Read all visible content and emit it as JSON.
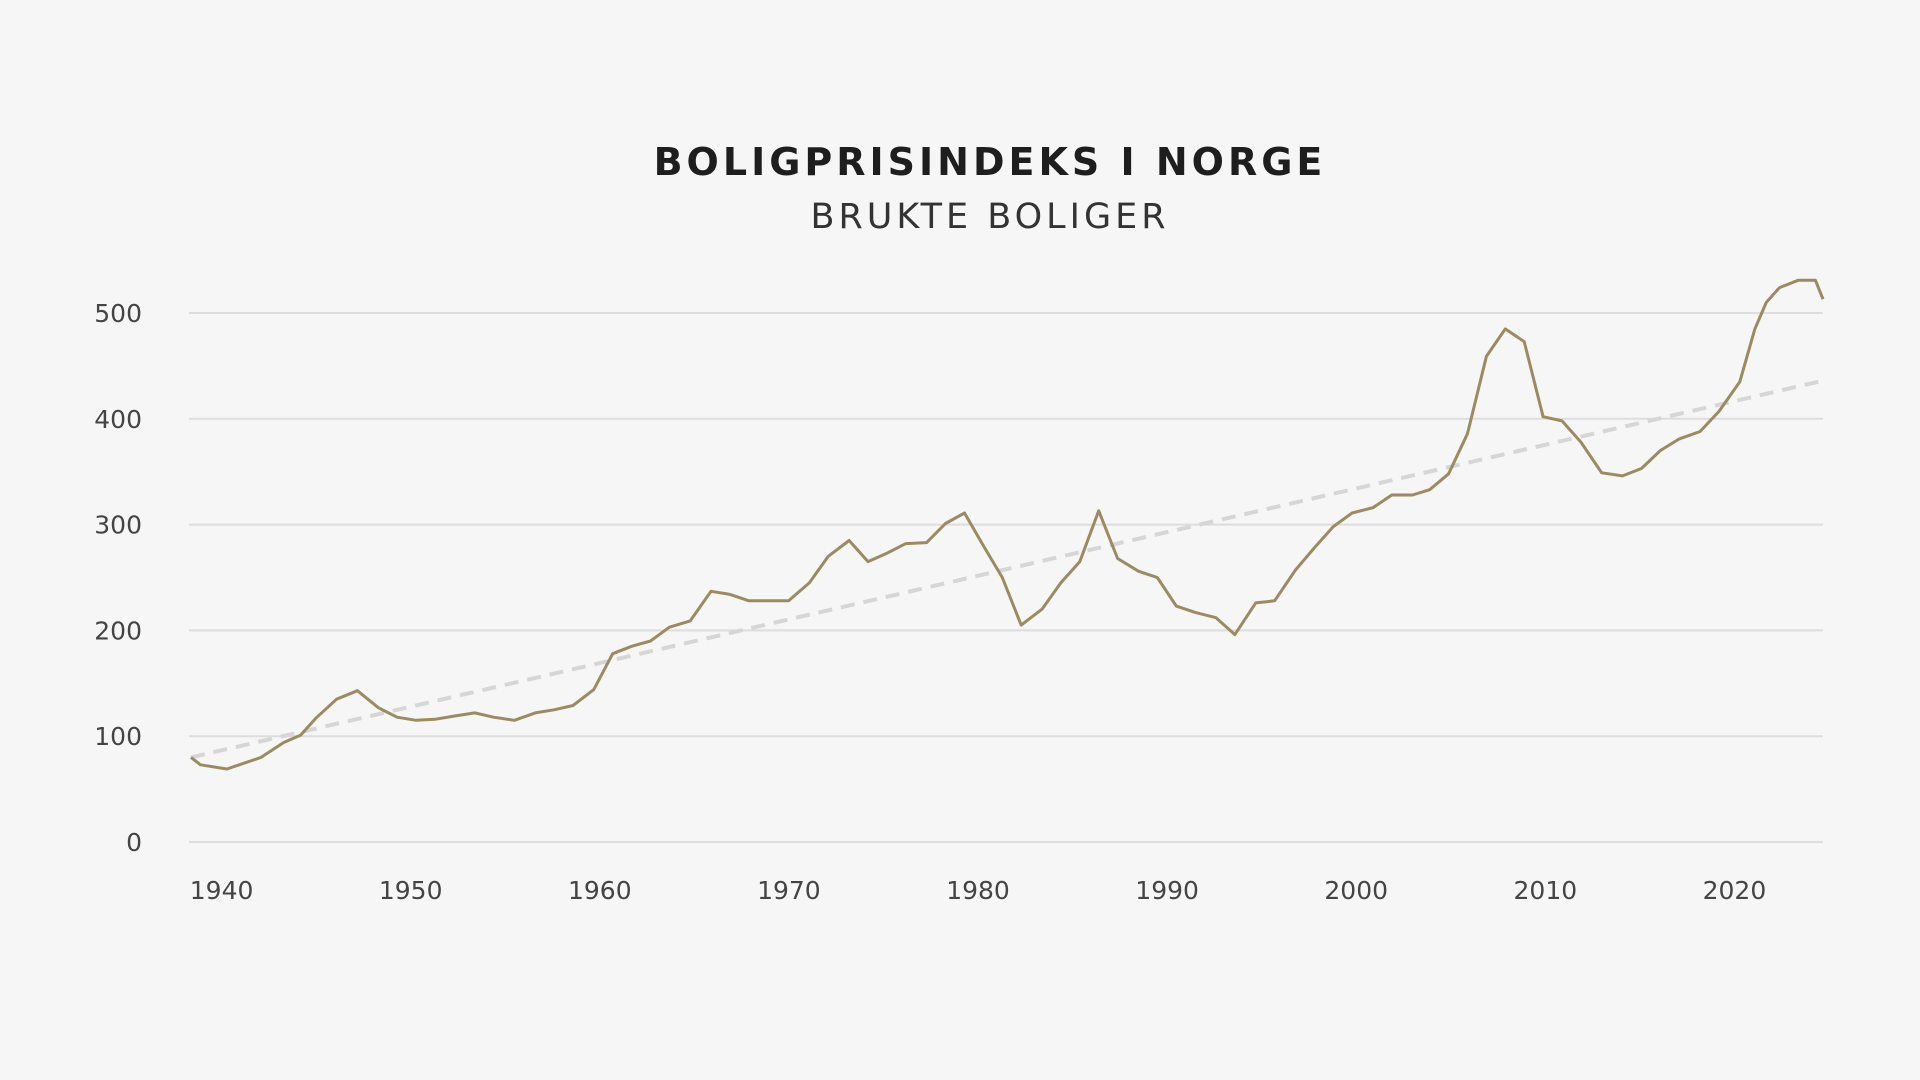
{
  "colors": {
    "background": "#f6f6f6",
    "series": "#9c8a60",
    "trend": "#d6d6d6",
    "grid": "#dddddd"
  },
  "chart_data": {
    "type": "line",
    "title": "BOLIGPRISINDEKS I NORGE",
    "subtitle": "BRUKTE BOLIGER",
    "xlabel": "",
    "ylabel": "",
    "xlim": [
      1938.7,
      2025
    ],
    "ylim": [
      0,
      500
    ],
    "grid": true,
    "legend": "none",
    "x_ticks": [
      1940,
      1950,
      1960,
      1970,
      1980,
      1990,
      2000,
      2010,
      2020
    ],
    "y_ticks": [
      0,
      100,
      200,
      300,
      400,
      500
    ],
    "series": [
      {
        "style": "solid",
        "x": [
          1938.7,
          1939.2,
          1940.6,
          1942.4,
          1943.6,
          1944.5,
          1945.3,
          1946.4,
          1947.5,
          1948.6,
          1949.6,
          1950.6,
          1951.6,
          1952.6,
          1953.7,
          1954.7,
          1955.8,
          1956.9,
          1957.9,
          1958.9,
          1960.0,
          1961.0,
          1962.0,
          1963.0,
          1964.0,
          1965.1,
          1966.2,
          1967.2,
          1968.2,
          1969.2,
          1970.3,
          1971.4,
          1972.4,
          1973.5,
          1974.5,
          1975.5,
          1976.5,
          1977.6,
          1978.6,
          1979.6,
          1980.6,
          1981.6,
          1982.6,
          1983.7,
          1984.7,
          1985.7,
          1986.7,
          1987.7,
          1988.8,
          1989.8,
          1990.8,
          1991.8,
          1992.9,
          1993.9,
          1995.0,
          1996.0,
          1997.1,
          1998.1,
          1999.1,
          2000.1,
          2001.2,
          2002.2,
          2003.3,
          2004.2,
          2005.2,
          2006.2,
          2007.2,
          2008.2,
          2009.2,
          2010.2,
          2011.2,
          2012.2,
          2013.3,
          2014.4,
          2015.4,
          2016.4,
          2017.4,
          2018.5,
          2019.5,
          2020.6,
          2021.4,
          2022.0,
          2022.7,
          2023.7,
          2024.6,
          2025.0
        ],
        "y": [
          80,
          73,
          69,
          80,
          94,
          101,
          117,
          135,
          143,
          127,
          118,
          115,
          116,
          119,
          122,
          118,
          115,
          122,
          125,
          129,
          144,
          178,
          185,
          190,
          203,
          209,
          237,
          234,
          228,
          228,
          228,
          245,
          270,
          285,
          265,
          273,
          282,
          283,
          301,
          311,
          280,
          250,
          205,
          220,
          245,
          265,
          313,
          268,
          256,
          250,
          223,
          217,
          212,
          196,
          226,
          228,
          257,
          278,
          298,
          311,
          316,
          328,
          328,
          333,
          348,
          386,
          459,
          485,
          473,
          402,
          398,
          378,
          349,
          346,
          353,
          370,
          381,
          388,
          407,
          435,
          485,
          510,
          524,
          531,
          531,
          513
        ]
      },
      {
        "style": "dashed",
        "x": [
          1938.7,
          2025
        ],
        "y": [
          80,
          436
        ]
      }
    ]
  }
}
